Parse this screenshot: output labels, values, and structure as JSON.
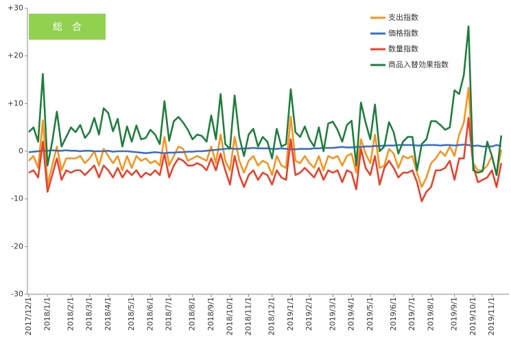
{
  "chart_data": {
    "type": "line",
    "badge": "総　合",
    "categories": [
      "2017/12/1",
      null,
      null,
      null,
      "2018/1/1",
      null,
      null,
      null,
      null,
      "2018/2/1",
      null,
      null,
      null,
      "2018/3/1",
      null,
      null,
      null,
      "2018/4/1",
      null,
      null,
      null,
      null,
      "2018/5/1",
      null,
      null,
      null,
      "2018/6/1",
      null,
      null,
      null,
      "2018/7/1",
      null,
      null,
      null,
      null,
      "2018/8/1",
      null,
      null,
      null,
      "2018/9/1",
      null,
      null,
      null,
      "2018/10/1",
      null,
      null,
      null,
      "2018/11/1",
      null,
      null,
      null,
      null,
      "2018/12/1",
      null,
      null,
      null,
      "2019/1/1",
      null,
      null,
      null,
      "2019/2/1",
      null,
      null,
      null,
      null,
      "2019/3/1",
      null,
      null,
      null,
      "2019/4/1",
      null,
      null,
      null,
      "2019/5/1",
      null,
      null,
      null,
      null,
      "2019/6/1",
      null,
      null,
      null,
      "2019/7/1",
      null,
      null,
      null,
      "2019/8/1",
      null,
      null,
      null,
      null,
      "2019/9/1",
      null,
      null,
      null,
      "2019/10/1",
      null,
      null,
      null,
      "2019/11/1",
      null,
      null
    ],
    "series": [
      {
        "name": "支出指数",
        "color": "#f5941e",
        "values": [
          -2,
          -1,
          -3.5,
          6.5,
          -7,
          -3,
          1,
          -4,
          -1.5,
          -1.5,
          -1.5,
          -1,
          -2.5,
          -1.5,
          0,
          -3,
          0.5,
          -1,
          -2.5,
          -1,
          -4,
          -1,
          -3.5,
          -1,
          -2,
          -1.5,
          -2.5,
          -2,
          -3,
          3,
          -3,
          -1,
          1,
          0.5,
          -2,
          -1.5,
          -1,
          -1.5,
          -2,
          1,
          -2.5,
          3.5,
          -2,
          -4,
          3,
          -2,
          -4.5,
          -2,
          -1,
          -3,
          -2,
          -2.5,
          -5,
          -1,
          -3,
          -3.5,
          7.3,
          -2,
          -2.5,
          -1,
          -2.5,
          -3.5,
          -1,
          -4,
          -1,
          -1.5,
          -1,
          -3,
          -1,
          -0.5,
          -4.5,
          2.5,
          -0.5,
          -2.5,
          3.5,
          -3.5,
          -3,
          0.5,
          -0.5,
          -3.5,
          -1,
          -1.5,
          -1,
          -4.5,
          -7.5,
          -5.5,
          -2.5,
          -1.5,
          0,
          -1,
          1,
          -1,
          3.5,
          6,
          13.3,
          -2.5,
          -4,
          -4,
          -3,
          -1,
          -5,
          0.3
        ]
      },
      {
        "name": "価格指数",
        "color": "#3a6fc4",
        "values": [
          -0.2,
          -0.1,
          0,
          0.1,
          0.1,
          0.2,
          0.1,
          0.1,
          0.2,
          0.1,
          0.1,
          0,
          0.1,
          0.1,
          0,
          0,
          0,
          0.1,
          -0.1,
          0,
          0,
          0,
          -0.1,
          -0.2,
          -0.3,
          -0.4,
          -0.3,
          -0.2,
          -0.3,
          -0.4,
          -0.3,
          -0.3,
          -0.2,
          -0.2,
          -0.1,
          -0.1,
          0,
          0,
          0.1,
          0.2,
          0.3,
          0.4,
          0.5,
          0.6,
          0.5,
          0.5,
          0.6,
          0.6,
          0.7,
          0.6,
          0.6,
          0.6,
          0.5,
          0.5,
          0.6,
          0.5,
          0.4,
          0.4,
          0.5,
          0.5,
          0.5,
          0.6,
          0.6,
          0.7,
          0.7,
          0.7,
          0.8,
          0.9,
          0.8,
          0.8,
          0.9,
          0.9,
          1,
          1,
          1.1,
          1.1,
          1.2,
          1.2,
          1.2,
          1.3,
          1.3,
          1.3,
          1.3,
          1.2,
          1.2,
          1.3,
          1.3,
          1.3,
          1.2,
          1.3,
          1.3,
          1.2,
          1.3,
          1.4,
          1.3,
          1.1,
          1.2,
          1,
          1,
          1,
          1.3,
          1.1
        ]
      },
      {
        "name": "数量指数",
        "color": "#e8412c",
        "values": [
          -4.5,
          -4,
          -5.5,
          2,
          -8.5,
          -5,
          -1.5,
          -6,
          -4,
          -4.5,
          -4,
          -4,
          -5,
          -4,
          -3,
          -5.5,
          -3,
          -4,
          -5.5,
          -3.5,
          -5.5,
          -4,
          -5,
          -4,
          -5.5,
          -4.5,
          -5,
          -4,
          -5,
          -0.5,
          -5.5,
          -3,
          -1.5,
          -2,
          -3,
          -3,
          -2.5,
          -3,
          -4,
          -1.5,
          -4,
          -0.5,
          -4,
          -7,
          -1,
          -5,
          -7.5,
          -5,
          -4,
          -6,
          -4.5,
          -5,
          -7,
          -4,
          -5.5,
          -6,
          2.5,
          -5,
          -4.5,
          -3.5,
          -4.5,
          -5.5,
          -3.5,
          -6,
          -4,
          -4.5,
          -4,
          -6.5,
          -4,
          -4.5,
          -8,
          0.5,
          -3.5,
          -5,
          -1,
          -7,
          -3.5,
          -2,
          -3.5,
          -5.5,
          -4.5,
          -4.5,
          -4,
          -6.5,
          -10.5,
          -8.5,
          -7.5,
          -4,
          -4,
          -3.5,
          -2,
          -6,
          -1.5,
          -1.5,
          7,
          -3,
          -6.5,
          -6,
          -5.5,
          -4,
          -7.5,
          -2.5
        ]
      },
      {
        "name": "商品入替効果指数",
        "color": "#1e7d3e",
        "values": [
          4,
          5,
          2,
          16.2,
          -3,
          2,
          8.3,
          1,
          3,
          5,
          4,
          5.5,
          2.8,
          4,
          7,
          3.5,
          9,
          8,
          4.2,
          6.8,
          1,
          5.2,
          2,
          5.4,
          2.5,
          2.8,
          4.5,
          3.5,
          1.5,
          10.5,
          2.2,
          6.3,
          7.2,
          6,
          4.5,
          2.5,
          3.5,
          3.2,
          2,
          7.5,
          2.5,
          12,
          1.5,
          0.5,
          11.7,
          3,
          -1,
          3.5,
          4.7,
          1,
          3,
          2,
          -1.5,
          4.7,
          1,
          1.5,
          13,
          4,
          3,
          5.2,
          2.5,
          1,
          5,
          0,
          5.8,
          6.2,
          4.5,
          2,
          5.5,
          6.4,
          -3,
          10.2,
          6,
          2.5,
          9.8,
          0,
          1,
          6.1,
          4,
          -0.5,
          2,
          3,
          3,
          -4,
          1.5,
          2.5,
          6.3,
          6.3,
          5.5,
          4.5,
          5,
          12.8,
          12,
          16,
          26.2,
          -4,
          -4.5,
          -4.2,
          2,
          -1,
          -5,
          3.3
        ]
      }
    ],
    "ylim": [
      -30,
      30
    ],
    "yticks": [
      {
        "value": 30,
        "label": "+30"
      },
      {
        "value": 20,
        "label": "+20"
      },
      {
        "value": 10,
        "label": "+10"
      },
      0,
      -10,
      -20,
      -30
    ],
    "grid": false,
    "legend": "top-right"
  }
}
